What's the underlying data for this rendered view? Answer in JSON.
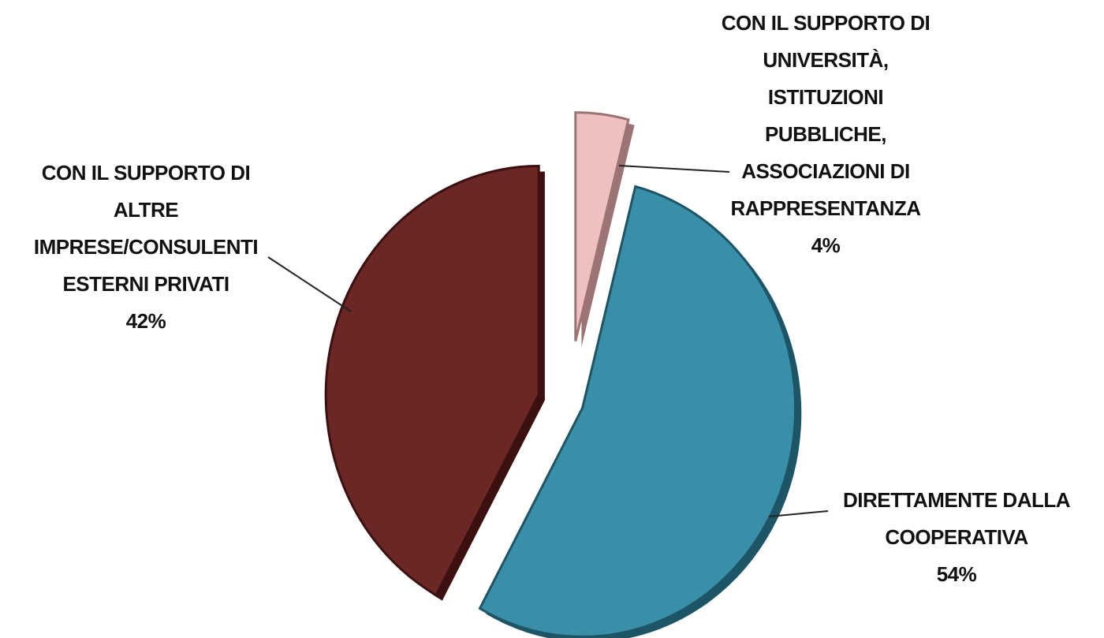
{
  "chart_data": {
    "type": "pie",
    "title": "",
    "style": "3d-exploded",
    "slices": [
      {
        "label_lines": [
          "CON IL SUPPORTO DI",
          "ALTRE",
          "IMPRESE/CONSULENTI",
          "ESTERNI PRIVATI"
        ],
        "percent_label": "42%",
        "value": 42,
        "color": "#6b2626",
        "edge_color": "#3d1010"
      },
      {
        "label_lines": [
          "CON IL SUPPORTO DI",
          "UNIVERSITÀ,",
          "ISTITUZIONI",
          "PUBBLICHE,",
          "ASSOCIAZIONI DI",
          "RAPPRESENTANZA"
        ],
        "percent_label": "4%",
        "value": 4,
        "color": "#f0bfbf",
        "edge_color": "#9c7474"
      },
      {
        "label_lines": [
          "DIRETTAMENTE DALLA",
          "COOPERATIVA"
        ],
        "percent_label": "54%",
        "value": 54,
        "color": "#3a8fa8",
        "edge_color": "#1d5566"
      }
    ]
  }
}
